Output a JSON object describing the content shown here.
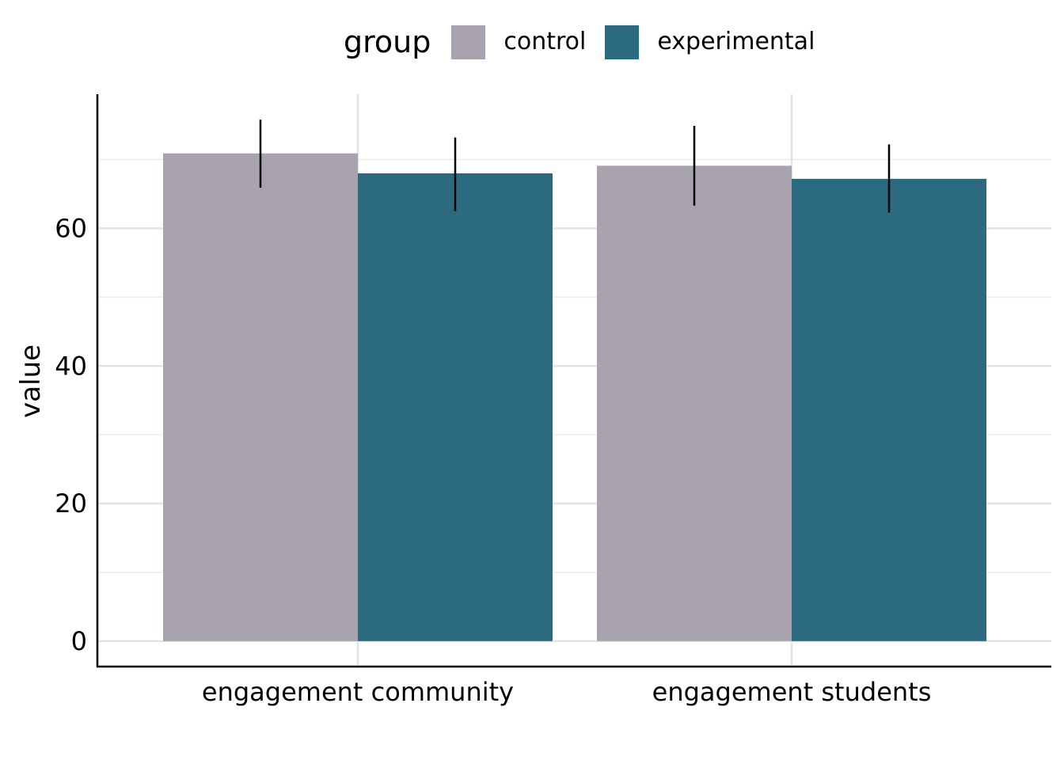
{
  "chart_data": {
    "type": "bar",
    "title": "",
    "xlabel": "",
    "ylabel": "value",
    "categories": [
      "engagement community",
      "engagement students"
    ],
    "series": [
      {
        "name": "control",
        "color": "#a8a3af",
        "values": [
          70.9,
          69.1
        ],
        "err_low": [
          65.9,
          63.3
        ],
        "err_high": [
          75.8,
          74.9
        ]
      },
      {
        "name": "experimental",
        "color": "#2c6a80",
        "values": [
          68.0,
          67.2
        ],
        "err_low": [
          62.5,
          62.3
        ],
        "err_high": [
          73.2,
          72.2
        ]
      }
    ],
    "yticks": [
      0,
      20,
      40,
      60
    ],
    "ylim": [
      -3.7,
      79.5
    ],
    "grid": true,
    "legend_title": "group",
    "legend_position": "top"
  }
}
